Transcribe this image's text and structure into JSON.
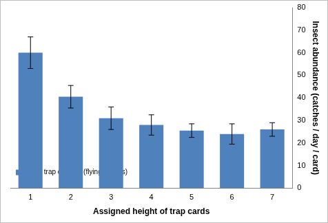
{
  "chart_data": {
    "type": "bar",
    "xlabel": "Assigned height of trap cards",
    "ylabel": "Insect abundance (catches / day / card)",
    "categories": [
      "1",
      "2",
      "3",
      "4",
      "5",
      "6",
      "7"
    ],
    "series": [
      {
        "name": "no. of trap catches (flying insects)",
        "color": "#4f81bd",
        "values": [
          60,
          40.5,
          31,
          28,
          25.5,
          24,
          26
        ],
        "errors": [
          7,
          5,
          5,
          4.5,
          3,
          4.5,
          3
        ]
      }
    ],
    "ylim": [
      0,
      80
    ],
    "yticks": [
      0,
      10,
      20,
      30,
      40,
      50,
      60,
      70,
      80
    ],
    "grid": false,
    "legend": "top-right"
  }
}
